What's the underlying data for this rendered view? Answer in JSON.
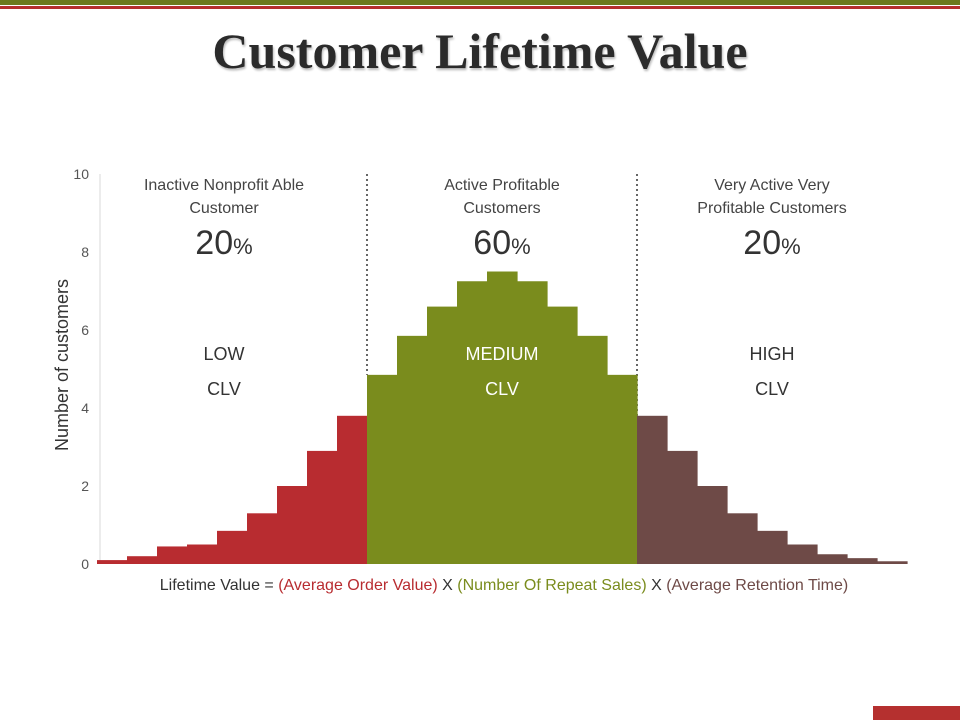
{
  "title": "Customer Lifetime Value",
  "colors": {
    "stripe_top": "#6b7a1e",
    "stripe_mid": "#b5302f",
    "low": "#b82c30",
    "medium": "#7a8c1d",
    "high": "#6e4a47",
    "bottom_bar": "#b5302f"
  },
  "chart_data": {
    "type": "bar",
    "ylabel": "Number of customers",
    "ylim": [
      0,
      10
    ],
    "yticks": [
      "0",
      "2",
      "4",
      "6",
      "8",
      "10"
    ],
    "values": [
      0.1,
      0.2,
      0.45,
      0.5,
      0.85,
      1.3,
      2.0,
      2.9,
      3.8,
      4.85,
      5.85,
      6.6,
      7.25,
      7.5,
      7.25,
      6.6,
      5.85,
      4.85,
      3.8,
      2.9,
      2.0,
      1.3,
      0.85,
      0.5,
      0.25,
      0.15,
      0.07
    ],
    "segment_of_bar": [
      0,
      0,
      0,
      0,
      0,
      0,
      0,
      0,
      0,
      1,
      1,
      1,
      1,
      1,
      1,
      1,
      1,
      1,
      2,
      2,
      2,
      2,
      2,
      2,
      2,
      2,
      2
    ],
    "segments": [
      {
        "title_line1": "Inactive Nonprofit Able",
        "title_line2": "Customer",
        "percent": "20",
        "percent_sign": "%",
        "level": "LOW",
        "clv": "CLV"
      },
      {
        "title_line1": "Active Profitable",
        "title_line2": "Customers",
        "percent": "60",
        "percent_sign": "%",
        "level": "MEDIUM",
        "clv": "CLV"
      },
      {
        "title_line1": "Very Active Very",
        "title_line2": "Profitable Customers",
        "percent": "20",
        "percent_sign": "%",
        "level": "HIGH",
        "clv": "CLV"
      }
    ],
    "formula": {
      "prefix": "Lifetime Value = ",
      "part1": "(Average Order Value)",
      "sep1": " X ",
      "part2": "(Number Of Repeat Sales)",
      "sep2": " X ",
      "part3": "(Average Retention Time)"
    }
  }
}
